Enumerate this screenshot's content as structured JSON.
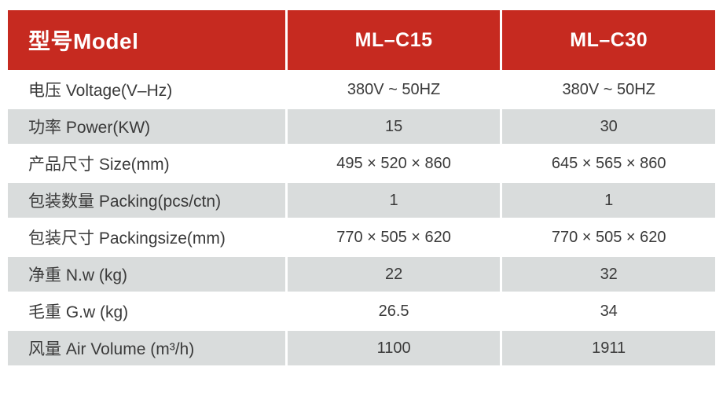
{
  "chart_data": {
    "type": "table",
    "columns": [
      "型号Model",
      "ML–C15",
      "ML–C30"
    ],
    "rows": [
      [
        "电压 Voltage(V–Hz)",
        "380V ~ 50HZ",
        "380V ~ 50HZ"
      ],
      [
        "功率 Power(KW)",
        "15",
        "30"
      ],
      [
        "产品尺寸 Size(mm)",
        "495 × 520 × 860",
        "645 × 565 × 860"
      ],
      [
        "包装数量 Packing(pcs/ctn)",
        "1",
        "1"
      ],
      [
        "包装尺寸 Packingsize(mm)",
        "770 × 505 × 620",
        "770 × 505 × 620"
      ],
      [
        "净重 N.w (kg)",
        "22",
        "32"
      ],
      [
        "毛重 G.w (kg)",
        "26.5",
        "34"
      ],
      [
        "风量 Air Volume (m³/h)",
        "1100",
        "1911"
      ]
    ],
    "layout": {
      "header_row": "red band with white bold text, first column left-aligned, model columns centered",
      "body_rows": "alternating white and light-gray bands separated by white 3px grid lines",
      "grid": "on"
    }
  },
  "theme": {
    "header-bg": "#C62A20",
    "header-text": "#FFFFFF",
    "row-bg": "#FFFFFF",
    "row-alt-bg": "#D9DCDC",
    "body-text": "#3A3A3A"
  }
}
